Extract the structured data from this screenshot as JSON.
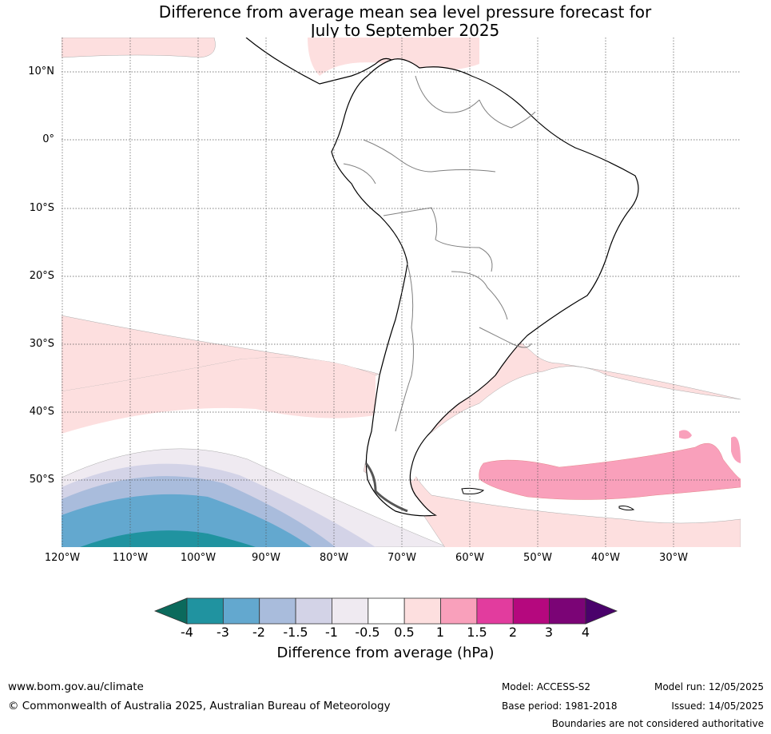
{
  "title_line1": "Difference from average mean sea level pressure forecast for",
  "title_line2": "July to September 2025",
  "lat_labels": [
    "10°N",
    "0°",
    "10°S",
    "20°S",
    "30°S",
    "40°S",
    "50°S"
  ],
  "lon_labels": [
    "120°W",
    "110°W",
    "100°W",
    "90°W",
    "80°W",
    "70°W",
    "60°W",
    "50°W",
    "40°W",
    "30°W"
  ],
  "colorbar": {
    "label": "Difference from average (hPa)",
    "ticks": [
      "-4",
      "-3",
      "-2",
      "-1.5",
      "-1",
      "-0.5",
      "0.5",
      "1",
      "1.5",
      "2",
      "3",
      "4"
    ],
    "colors": [
      "#0b6a5c",
      "#2093a0",
      "#63a8cf",
      "#a9bcdc",
      "#d3d3e7",
      "#efeaf1",
      "#ffffff",
      "#fddfdf",
      "#f9a0bb",
      "#e23c9e",
      "#b5087e",
      "#7b0476",
      "#4a026b"
    ]
  },
  "footer": {
    "website": "www.bom.gov.au/climate",
    "copyright": "© Commonwealth of Australia 2025, Australian Bureau of Meteorology",
    "model": "Model: ACCESS-S2",
    "base_period": "Base period: 1981-2018",
    "model_run": "Model run: 12/05/2025",
    "issued": "Issued: 14/05/2025",
    "disclaimer": "Boundaries are not considered authoritative"
  }
}
